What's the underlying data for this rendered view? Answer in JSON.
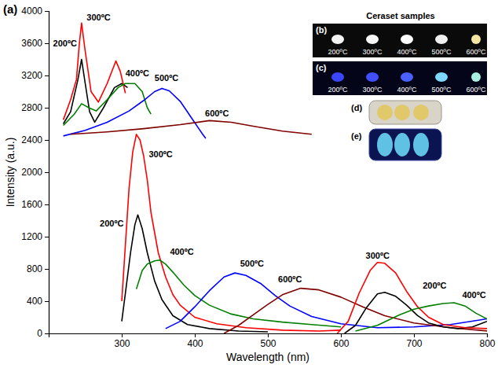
{
  "chart_data": {
    "type": "line",
    "label": "(a)",
    "x_label": "Wavelength (nm)",
    "y_label": "Intensity (a.u.)",
    "xlim": [
      200,
      800
    ],
    "ylim": [
      0,
      4000
    ],
    "xticks": [
      300,
      400,
      500,
      600,
      700,
      800
    ],
    "yticks": [
      0,
      400,
      800,
      1200,
      1600,
      2000,
      2400,
      2800,
      3200,
      3600,
      4000
    ],
    "series": [
      {
        "color": "#000000",
        "x": [
          220,
          230,
          240,
          245,
          250,
          256,
          263,
          275,
          290,
          300,
          308
        ],
        "values": [
          2600,
          2750,
          3150,
          3400,
          3100,
          2750,
          2620,
          2800,
          3050,
          3100,
          3050
        ]
      },
      {
        "color": "#ff0000",
        "x": [
          220,
          230,
          238,
          242,
          245,
          250,
          258,
          268,
          280,
          292,
          298,
          305
        ],
        "values": [
          2650,
          2900,
          3150,
          3600,
          3850,
          3500,
          3000,
          2870,
          3100,
          3380,
          3250,
          2980
        ]
      },
      {
        "color": "#008000",
        "x": [
          220,
          235,
          245,
          255,
          265,
          280,
          295,
          305,
          318,
          328,
          335,
          340
        ],
        "values": [
          2580,
          2720,
          2850,
          2800,
          2760,
          2900,
          3050,
          3100,
          3100,
          3000,
          2800,
          2720
        ]
      },
      {
        "color": "#0000ff",
        "x": [
          220,
          250,
          280,
          310,
          330,
          345,
          355,
          365,
          380,
          395,
          410,
          415
        ],
        "values": [
          2450,
          2520,
          2620,
          2760,
          2890,
          3000,
          3040,
          3010,
          2880,
          2680,
          2480,
          2420
        ]
      },
      {
        "color": "#800000",
        "x": [
          230,
          280,
          330,
          380,
          420,
          450,
          480,
          520,
          560
        ],
        "values": [
          2470,
          2500,
          2540,
          2590,
          2640,
          2620,
          2570,
          2510,
          2470
        ]
      },
      {
        "color": "#000000",
        "x": [
          300,
          305,
          312,
          318,
          322,
          328,
          335,
          345,
          355,
          370,
          390,
          420,
          460,
          500
        ],
        "values": [
          150,
          500,
          1000,
          1350,
          1470,
          1300,
          1000,
          650,
          420,
          220,
          110,
          60,
          30,
          20
        ]
      },
      {
        "color": "#ff0000",
        "x": [
          300,
          305,
          310,
          315,
          320,
          325,
          330,
          335,
          340,
          350,
          360,
          370,
          380,
          400,
          430,
          470,
          520,
          570,
          600
        ],
        "values": [
          400,
          1100,
          1800,
          2250,
          2470,
          2400,
          2200,
          1900,
          1500,
          1000,
          700,
          480,
          350,
          200,
          120,
          70,
          40,
          30,
          40
        ]
      },
      {
        "color": "#008000",
        "x": [
          320,
          328,
          335,
          345,
          352,
          360,
          370,
          385,
          400,
          420,
          450,
          480,
          520,
          560,
          600
        ],
        "values": [
          550,
          780,
          860,
          900,
          910,
          860,
          760,
          600,
          470,
          350,
          240,
          180,
          140,
          110,
          80
        ]
      },
      {
        "color": "#0000ff",
        "x": [
          360,
          380,
          400,
          420,
          440,
          455,
          470,
          490,
          510,
          530,
          560,
          600,
          650,
          700,
          750,
          800
        ],
        "values": [
          60,
          150,
          330,
          530,
          700,
          750,
          720,
          620,
          470,
          340,
          210,
          120,
          70,
          80,
          110,
          180
        ]
      },
      {
        "color": "#800000",
        "x": [
          440,
          460,
          480,
          500,
          520,
          545,
          570,
          600,
          630,
          660,
          700,
          750,
          800
        ],
        "values": [
          0,
          100,
          230,
          360,
          480,
          560,
          540,
          450,
          330,
          220,
          130,
          70,
          30
        ]
      },
      {
        "color": "#000000",
        "x": [
          605,
          620,
          635,
          650,
          660,
          675,
          690,
          705,
          720,
          740,
          760,
          780,
          800
        ],
        "values": [
          0,
          100,
          320,
          490,
          510,
          460,
          350,
          220,
          130,
          80,
          60,
          80,
          150
        ]
      },
      {
        "color": "#ff0000",
        "x": [
          595,
          610,
          625,
          640,
          650,
          660,
          675,
          690,
          705,
          720,
          740,
          770,
          800
        ],
        "values": [
          0,
          150,
          500,
          780,
          880,
          870,
          750,
          520,
          330,
          200,
          110,
          70,
          60
        ]
      },
      {
        "color": "#008000",
        "x": [
          620,
          650,
          680,
          700,
          720,
          740,
          755,
          770,
          785,
          800
        ],
        "values": [
          30,
          100,
          230,
          300,
          340,
          370,
          380,
          340,
          250,
          180
        ]
      }
    ],
    "annotations": [
      {
        "text": "200ºC",
        "x": 206,
        "y": 3560
      },
      {
        "text": "300ºC",
        "x": 252,
        "y": 3880
      },
      {
        "text": "400ºC",
        "x": 305,
        "y": 3190
      },
      {
        "text": "500ºC",
        "x": 345,
        "y": 3130
      },
      {
        "text": "600ºC",
        "x": 414,
        "y": 2690
      },
      {
        "text": "300ºC",
        "x": 337,
        "y": 2190
      },
      {
        "text": "200ºC",
        "x": 270,
        "y": 1330
      },
      {
        "text": "400ºC",
        "x": 366,
        "y": 980
      },
      {
        "text": "500ºC",
        "x": 462,
        "y": 830
      },
      {
        "text": "600ºC",
        "x": 514,
        "y": 630
      },
      {
        "text": "300ºC",
        "x": 634,
        "y": 930
      },
      {
        "text": "200ºC",
        "x": 712,
        "y": 560
      },
      {
        "text": "400ºC",
        "x": 766,
        "y": 440
      }
    ]
  },
  "inset": {
    "title": "Ceraset samples",
    "panels": [
      {
        "label": "(b)",
        "labels": [
          "200ºC",
          "300ºC",
          "400ºC",
          "500ºC",
          "600ºC"
        ]
      },
      {
        "label": "(c)",
        "labels": [
          "200ºC",
          "300ºC",
          "400ºC",
          "500ºC",
          "600ºC"
        ]
      },
      {
        "label": "(d)"
      },
      {
        "label": "(e)"
      }
    ]
  }
}
